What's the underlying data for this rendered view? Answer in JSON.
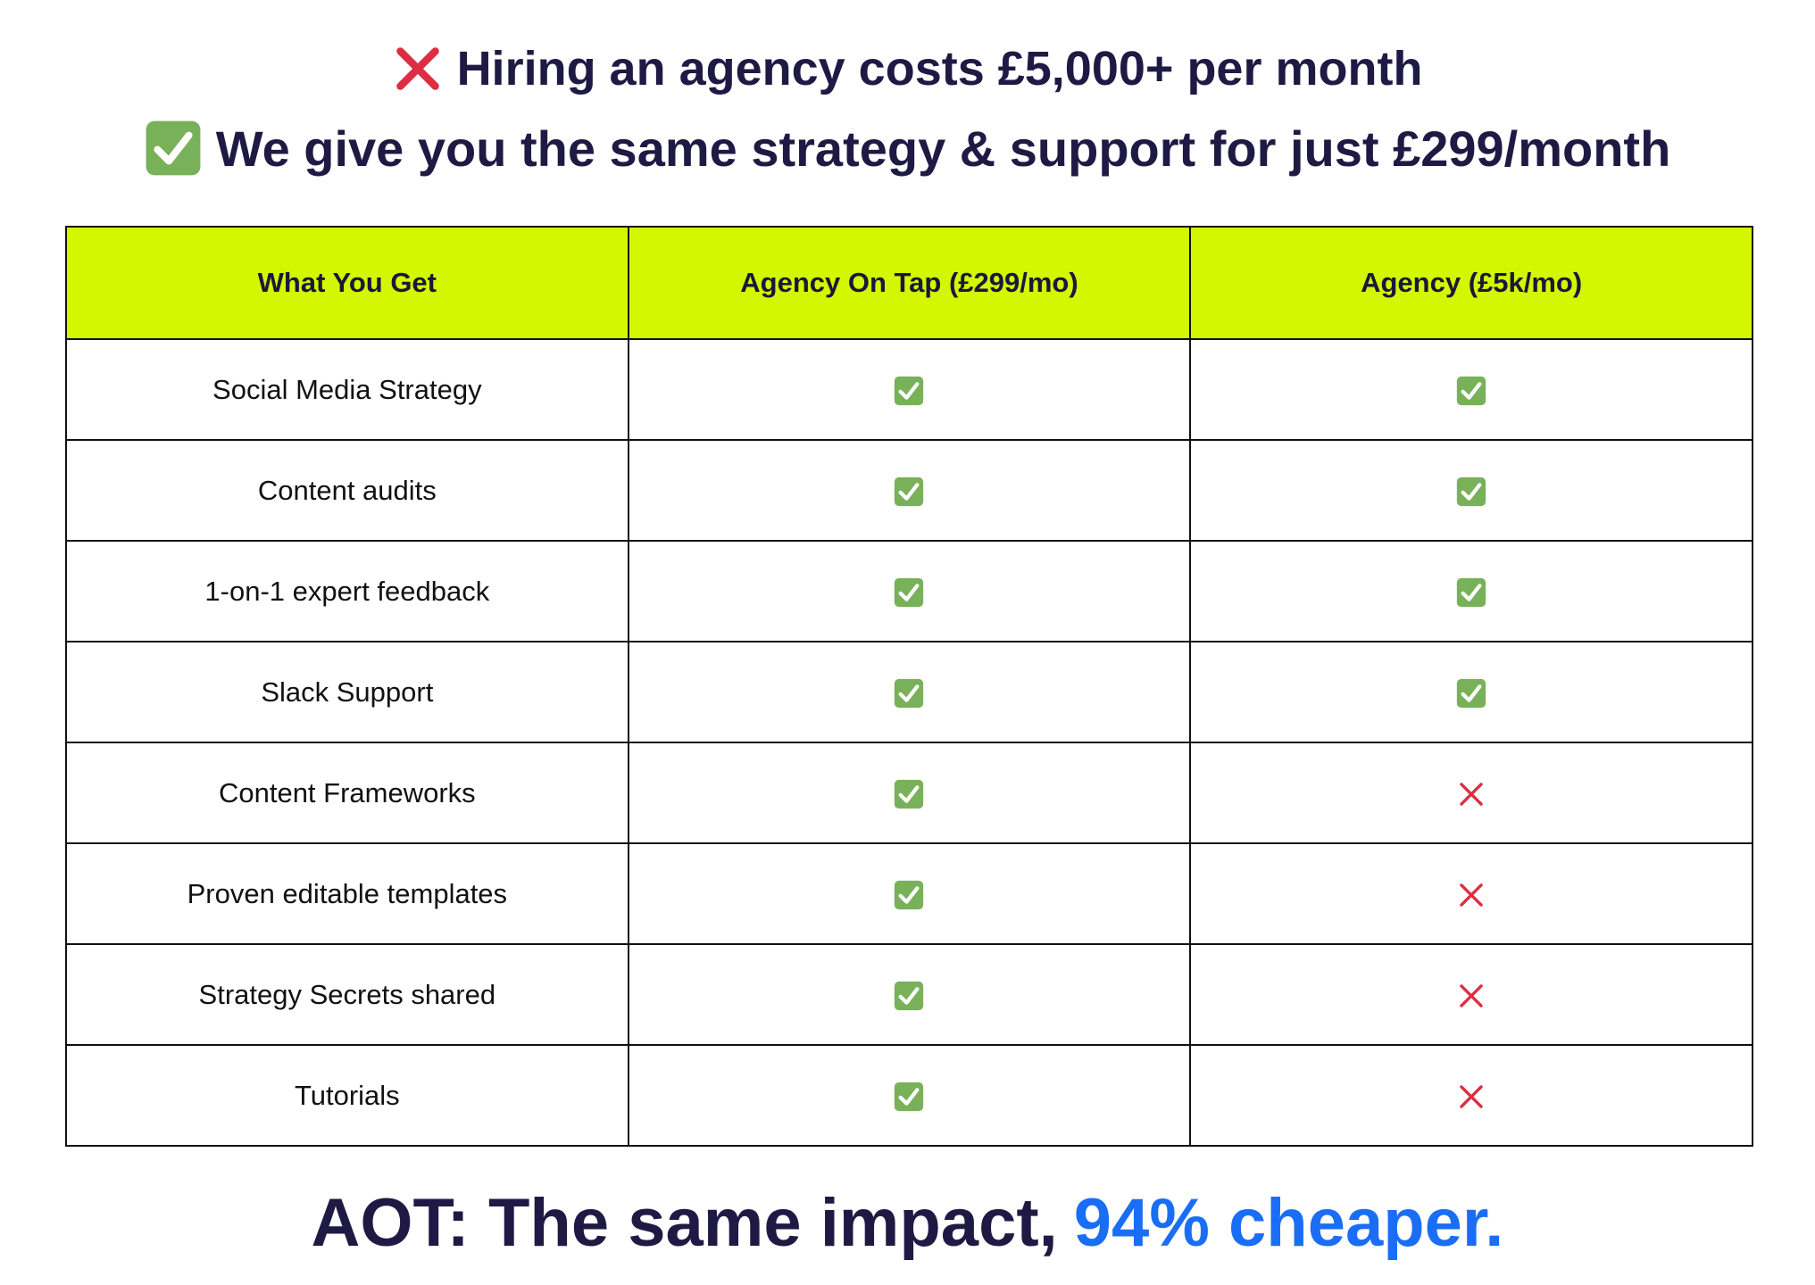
{
  "header": {
    "lines": [
      "Hiring an agency costs £5,000+ per month",
      "We give you the same strategy & support for just £299/month"
    ]
  },
  "table": {
    "columns": [
      "What You Get",
      "Agency On Tap (£299/mo)",
      "Agency (£5k/mo)"
    ],
    "rows": [
      {
        "feature": "Social Media Strategy",
        "aot": true,
        "agency": true
      },
      {
        "feature": "Content audits",
        "aot": true,
        "agency": true
      },
      {
        "feature": "1-on-1 expert feedback",
        "aot": true,
        "agency": true
      },
      {
        "feature": "Slack Support",
        "aot": true,
        "agency": true
      },
      {
        "feature": "Content Frameworks",
        "aot": true,
        "agency": false
      },
      {
        "feature": "Proven editable templates",
        "aot": true,
        "agency": false
      },
      {
        "feature": "Strategy Secrets shared",
        "aot": true,
        "agency": false
      },
      {
        "feature": "Tutorials",
        "aot": true,
        "agency": false
      }
    ]
  },
  "footer": {
    "text": "AOT: The same impact,",
    "highlight": "94% cheaper."
  }
}
